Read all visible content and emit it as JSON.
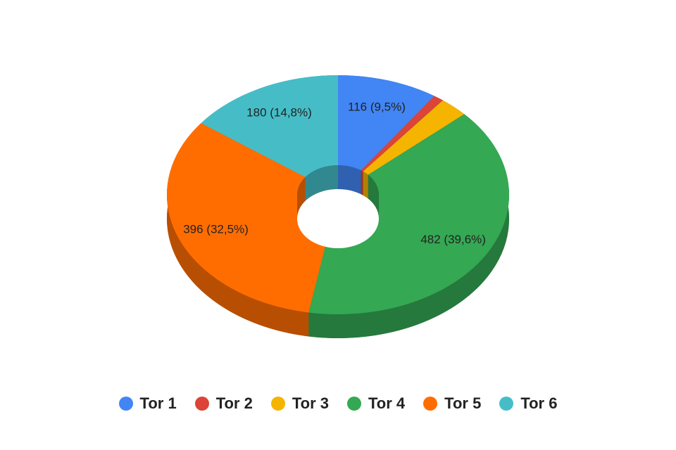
{
  "chart_data": {
    "type": "pie",
    "style": "3d-donut",
    "legend_position": "bottom",
    "categories": [
      "Tor 1",
      "Tor 2",
      "Tor 3",
      "Tor 4",
      "Tor 5",
      "Tor 6"
    ],
    "values": [
      116,
      12,
      33,
      482,
      396,
      180
    ],
    "colors": [
      "#4285F4",
      "#DB4437",
      "#F4B400",
      "#34A853",
      "#FF6D01",
      "#46BDC6"
    ],
    "data_labels": [
      "116 (9,5%)",
      "",
      "",
      "482 (39,6%)",
      "396 (32,5%)",
      "180 (14,8%)"
    ]
  }
}
